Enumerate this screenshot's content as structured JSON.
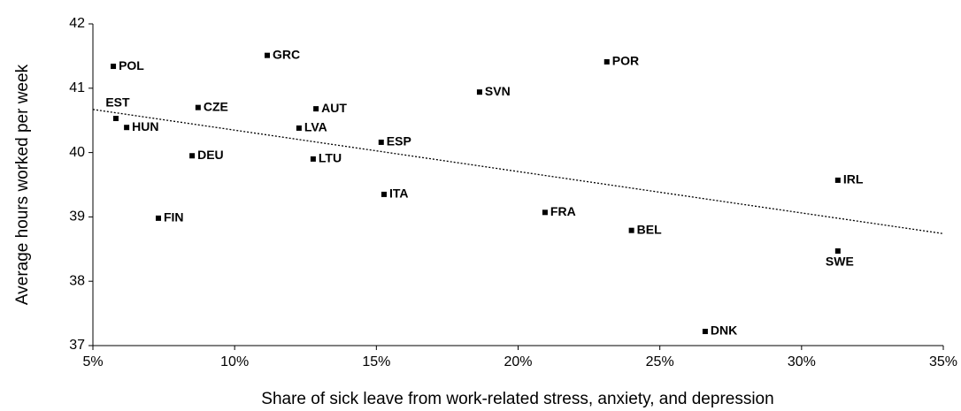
{
  "chart_data": {
    "type": "scatter",
    "x_label": "Share of sick leave from work-related stress, anxiety, and depression",
    "y_label": "Average hours worked per week",
    "labels": [
      "POL",
      "GRC",
      "POR",
      "SVN",
      "EST",
      "CZE",
      "AUT",
      "HUN",
      "LVA",
      "ESP",
      "DEU",
      "LTU",
      "IRL",
      "ITA",
      "FRA",
      "FIN",
      "SWE",
      "BEL",
      "DNK"
    ],
    "x": [
      5.72,
      11.15,
      23.13,
      18.64,
      5.81,
      8.71,
      12.87,
      6.19,
      12.27,
      15.17,
      8.5,
      12.77,
      31.28,
      15.27,
      20.95,
      7.31,
      31.28,
      24.0,
      26.6
    ],
    "values": [
      41.34,
      41.51,
      41.41,
      40.94,
      40.53,
      40.7,
      40.68,
      40.39,
      40.38,
      40.16,
      39.95,
      39.9,
      39.57,
      39.35,
      39.07,
      38.98,
      38.47,
      38.79,
      37.22
    ],
    "color": "#000000",
    "trendline": {
      "x": [
        5,
        35
      ],
      "values": [
        40.67,
        38.74
      ]
    },
    "xlim": [
      5,
      35
    ],
    "xticks": [
      {
        "value": 5,
        "label": "5%"
      },
      {
        "value": 10,
        "label": "10%"
      },
      {
        "value": 15,
        "label": "15%"
      },
      {
        "value": 20,
        "label": "20%"
      },
      {
        "value": 25,
        "label": "25%"
      },
      {
        "value": 30,
        "label": "30%"
      },
      {
        "value": 35,
        "label": "35%"
      }
    ],
    "ylim": [
      37,
      42
    ],
    "yticks": [
      37,
      38,
      39,
      40,
      41,
      42
    ],
    "grid": false
  }
}
